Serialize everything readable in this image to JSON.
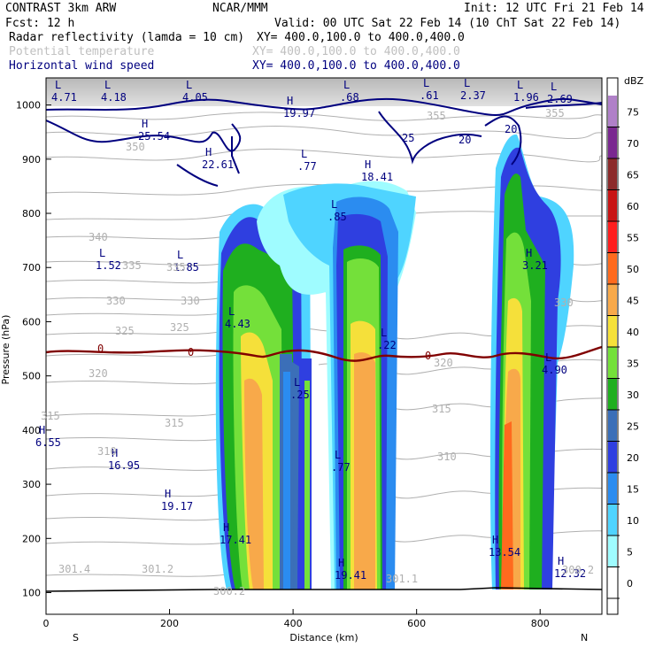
{
  "header": {
    "model": "CONTRAST  3km ARW",
    "center": "NCAR/MMM",
    "init": "Init: 12 UTC Fri 21 Feb 14",
    "fcst": "Fcst:   12 h",
    "valid": "Valid: 00 UTC Sat 22 Feb 14 (10 ChT Sat 22 Feb 14)",
    "fields": [
      {
        "name": "Radar reflectivity (lamda = 10 cm)",
        "xy": "XY= 400.0,100.0 to 400.0,400.0",
        "color": "#000000"
      },
      {
        "name": "Potential temperature",
        "xy": "XY= 400.0,100.0 to 400.0,400.0",
        "color": "#c0c0c0"
      },
      {
        "name": "Horizontal wind speed",
        "xy": "XY= 400.0,100.0 to 400.0,400.0",
        "color": "#00007f"
      }
    ]
  },
  "chart_data": {
    "type": "heatmap",
    "title": "Cross section: Radar reflectivity, Potential temperature, Horizontal wind speed",
    "xlabel": "Distance (km)",
    "ylabel": "Pressure (hPa)",
    "xlim": [
      0,
      900
    ],
    "ylim": [
      1050,
      60
    ],
    "x_ticks": [
      0,
      200,
      400,
      600,
      800
    ],
    "x_tick_labels": [
      "0",
      "200",
      "400",
      "600",
      "800"
    ],
    "y_ticks": [
      100,
      200,
      300,
      400,
      500,
      600,
      700,
      800,
      900,
      1000
    ],
    "y_tick_labels": [
      "100",
      "200",
      "300",
      "400",
      "500",
      "600",
      "700",
      "800",
      "900",
      "1000"
    ],
    "x_ends": {
      "left": "S",
      "right": "N"
    },
    "colorbar": {
      "units": "dBZ",
      "levels": [
        "0",
        "5",
        "10",
        "15",
        "20",
        "25",
        "30",
        "35",
        "40",
        "45",
        "50",
        "55",
        "60",
        "65",
        "70",
        "75"
      ],
      "colors": [
        "#ffffff",
        "#9ffcff",
        "#4fd4ff",
        "#2b8cf0",
        "#2f3fe0",
        "#3b6fb8",
        "#1faf1f",
        "#74e03a",
        "#f5e03a",
        "#f8a94a",
        "#ff6a1e",
        "#ff1e1e",
        "#c81414",
        "#8c2a2a",
        "#7a2890",
        "#b080c8"
      ]
    },
    "reflectivity_cells": [
      {
        "name": "cell-1",
        "x_range": [
          270,
          350
        ],
        "top_hPa": 300,
        "bottom_hPa": 1005,
        "max_dbz": 45
      },
      {
        "name": "cell-2",
        "x_range": [
          375,
          545
        ],
        "top_hPa": 255,
        "bottom_hPa": 1005,
        "max_dbz": 45
      },
      {
        "name": "cell-3",
        "x_range": [
          740,
          820
        ],
        "top_hPa": 170,
        "bottom_hPa": 1005,
        "max_dbz": 50
      }
    ],
    "freezing_level": {
      "label": "0",
      "pressure_hPa": 560,
      "color": "#800000"
    },
    "theta_labels": [
      "340",
      "335",
      "335",
      "330",
      "330",
      "325",
      "325",
      "320",
      "320",
      "315",
      "315",
      "315",
      "310",
      "310",
      "330",
      "355",
      "355",
      "350",
      "301.4",
      "301.2",
      "301.1",
      "300.2",
      "300.2"
    ],
    "wind_labels": [
      "25",
      "20",
      "20"
    ],
    "extrema_labels": [
      {
        "type": "L",
        "value": "4.71"
      },
      {
        "type": "L",
        "value": "4.18"
      },
      {
        "type": "L",
        "value": "4.05"
      },
      {
        "type": "L",
        "value": ".68"
      },
      {
        "type": "L",
        "value": ".61"
      },
      {
        "type": "L",
        "value": "2.37"
      },
      {
        "type": "L",
        "value": "1.96"
      },
      {
        "type": "L",
        "value": "2.69"
      },
      {
        "type": "H",
        "value": "19.97"
      },
      {
        "type": "H",
        "value": "25.54"
      },
      {
        "type": "H",
        "value": "22.61"
      },
      {
        "type": "L",
        "value": ".77"
      },
      {
        "type": "H",
        "value": "18.41"
      },
      {
        "type": "L",
        "value": ".85"
      },
      {
        "type": "L",
        "value": "1.52"
      },
      {
        "type": "L",
        "value": "1.85"
      },
      {
        "type": "H",
        "value": "3.21"
      },
      {
        "type": "L",
        "value": "4.43"
      },
      {
        "type": "L",
        "value": ".22"
      },
      {
        "type": "L",
        "value": "4.90"
      },
      {
        "type": "L",
        "value": ".25"
      },
      {
        "type": "H",
        "value": "6.55"
      },
      {
        "type": "H",
        "value": "16.95"
      },
      {
        "type": "L",
        "value": ".77"
      },
      {
        "type": "H",
        "value": "19.17"
      },
      {
        "type": "H",
        "value": "17.41"
      },
      {
        "type": "H",
        "value": "13.54"
      },
      {
        "type": "H",
        "value": "19.41"
      },
      {
        "type": "H",
        "value": "12.32"
      }
    ]
  }
}
